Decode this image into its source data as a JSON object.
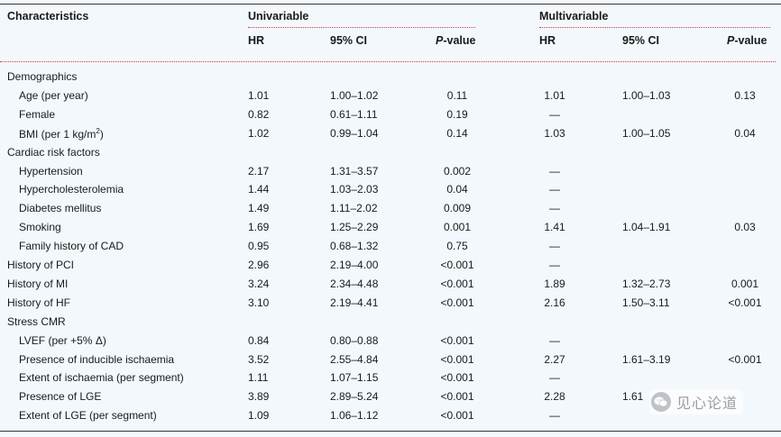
{
  "header": {
    "characteristics": "Characteristics",
    "univariable": "Univariable",
    "multivariable": "Multivariable",
    "hr": "HR",
    "ci": "95% CI",
    "p_italic": "P",
    "p_rest": "-value"
  },
  "rows": [
    {
      "label": "Demographics",
      "indent": false,
      "hr1": "",
      "ci1": "",
      "p1": "",
      "hr2": "",
      "ci2": "",
      "p2": ""
    },
    {
      "label": "Age (per year)",
      "indent": true,
      "hr1": "1.01",
      "ci1": "1.00–1.02",
      "p1": "0.11",
      "hr2": "1.01",
      "ci2": "1.00–1.03",
      "p2": "0.13"
    },
    {
      "label": "Female",
      "indent": true,
      "hr1": "0.82",
      "ci1": "0.61–1.11",
      "p1": "0.19",
      "hr2": "—",
      "ci2": "",
      "p2": ""
    },
    {
      "label": "BMI (per 1 kg/m",
      "label_sup": "2",
      "label_tail": ")",
      "indent": true,
      "hr1": "1.02",
      "ci1": "0.99–1.04",
      "p1": "0.14",
      "hr2": "1.03",
      "ci2": "1.00–1.05",
      "p2": "0.04"
    },
    {
      "label": "Cardiac risk factors",
      "indent": false,
      "hr1": "",
      "ci1": "",
      "p1": "",
      "hr2": "",
      "ci2": "",
      "p2": ""
    },
    {
      "label": "Hypertension",
      "indent": true,
      "hr1": "2.17",
      "ci1": "1.31–3.57",
      "p1": "0.002",
      "hr2": "—",
      "ci2": "",
      "p2": ""
    },
    {
      "label": "Hypercholesterolemia",
      "indent": true,
      "hr1": "1.44",
      "ci1": "1.03–2.03",
      "p1": "0.04",
      "hr2": "—",
      "ci2": "",
      "p2": ""
    },
    {
      "label": "Diabetes mellitus",
      "indent": true,
      "hr1": "1.49",
      "ci1": "1.11–2.02",
      "p1": "0.009",
      "hr2": "—",
      "ci2": "",
      "p2": ""
    },
    {
      "label": "Smoking",
      "indent": true,
      "hr1": "1.69",
      "ci1": "1.25–2.29",
      "p1": "0.001",
      "hr2": "1.41",
      "ci2": "1.04–1.91",
      "p2": "0.03"
    },
    {
      "label": "Family history of CAD",
      "indent": true,
      "hr1": "0.95",
      "ci1": "0.68–1.32",
      "p1": "0.75",
      "hr2": "—",
      "ci2": "",
      "p2": ""
    },
    {
      "label": "History of PCI",
      "indent": false,
      "hr1": "2.96",
      "ci1": "2.19–4.00",
      "p1": "<0.001",
      "hr2": "—",
      "ci2": "",
      "p2": ""
    },
    {
      "label": "History of MI",
      "indent": false,
      "hr1": "3.24",
      "ci1": "2.34–4.48",
      "p1": "<0.001",
      "hr2": "1.89",
      "ci2": "1.32–2.73",
      "p2": "0.001"
    },
    {
      "label": "History of HF",
      "indent": false,
      "hr1": "3.10",
      "ci1": "2.19–4.41",
      "p1": "<0.001",
      "hr2": "2.16",
      "ci2": "1.50–3.11",
      "p2": "<0.001"
    },
    {
      "label": "Stress CMR",
      "indent": false,
      "hr1": "",
      "ci1": "",
      "p1": "",
      "hr2": "",
      "ci2": "",
      "p2": ""
    },
    {
      "label": "LVEF (per +5% Δ)",
      "indent": true,
      "hr1": "0.84",
      "ci1": "0.80–0.88",
      "p1": "<0.001",
      "hr2": "—",
      "ci2": "",
      "p2": ""
    },
    {
      "label": "Presence of inducible ischaemia",
      "indent": true,
      "hr1": "3.52",
      "ci1": "2.55–4.84",
      "p1": "<0.001",
      "hr2": "2.27",
      "ci2": "1.61–3.19",
      "p2": "<0.001"
    },
    {
      "label": "Extent of ischaemia (per segment)",
      "indent": true,
      "hr1": "1.11",
      "ci1": "1.07–1.15",
      "p1": "<0.001",
      "hr2": "—",
      "ci2": "",
      "p2": ""
    },
    {
      "label": "Presence of LGE",
      "indent": true,
      "hr1": "3.89",
      "ci1": "2.89–5.24",
      "p1": "<0.001",
      "hr2": "2.28",
      "ci2": "1.61",
      "p2": ""
    },
    {
      "label": "Extent of LGE (per segment)",
      "indent": true,
      "hr1": "1.09",
      "ci1": "1.06–1.12",
      "p1": "<0.001",
      "hr2": "—",
      "ci2": "",
      "p2": ""
    }
  ],
  "watermark": {
    "text": "见心论道"
  },
  "colors": {
    "rule": "#333333",
    "dotted_rule": "#d23a3a",
    "background": "#f3f8fc"
  }
}
